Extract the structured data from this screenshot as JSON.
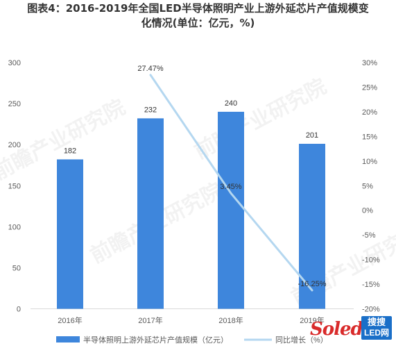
{
  "title_line1": "图表4：2016-2019年全国LED半导体照明产业上游外延芯片产值规模变",
  "title_line2": "化情况(单位：亿元，%)",
  "chart_data": {
    "type": "bar",
    "categories": [
      "2016年",
      "2017年",
      "2018年",
      "2019年"
    ],
    "series": [
      {
        "name": "半导体照明上游外延芯片产值规模（亿元）",
        "type": "bar",
        "axis": "left",
        "values": [
          182,
          232,
          240,
          201
        ],
        "labels": [
          "182",
          "232",
          "240",
          "201"
        ],
        "color": "#3e86dc"
      },
      {
        "name": "同比增长（%）",
        "type": "line",
        "axis": "right",
        "values": [
          null,
          27.47,
          3.45,
          -16.25
        ],
        "labels": [
          "",
          "27.47%",
          "3.45%",
          "-16.25%"
        ],
        "color": "#b4d7f0"
      }
    ],
    "y_left": {
      "min": 0,
      "max": 300,
      "ticks": [
        "0",
        "50",
        "100",
        "150",
        "200",
        "250",
        "300"
      ]
    },
    "y_right": {
      "min": -20,
      "max": 30,
      "ticks": [
        "-20%",
        "-15%",
        "-10%",
        "-5%",
        "0%",
        "5%",
        "10%",
        "15%",
        "20%",
        "25%",
        "30%"
      ]
    },
    "grid": false,
    "legend_position": "bottom"
  },
  "watermark": {
    "brand": "前瞻产业研究院",
    "logo_text": "Soled",
    "badge_line1": "搜搜",
    "badge_line2": "LED网"
  }
}
